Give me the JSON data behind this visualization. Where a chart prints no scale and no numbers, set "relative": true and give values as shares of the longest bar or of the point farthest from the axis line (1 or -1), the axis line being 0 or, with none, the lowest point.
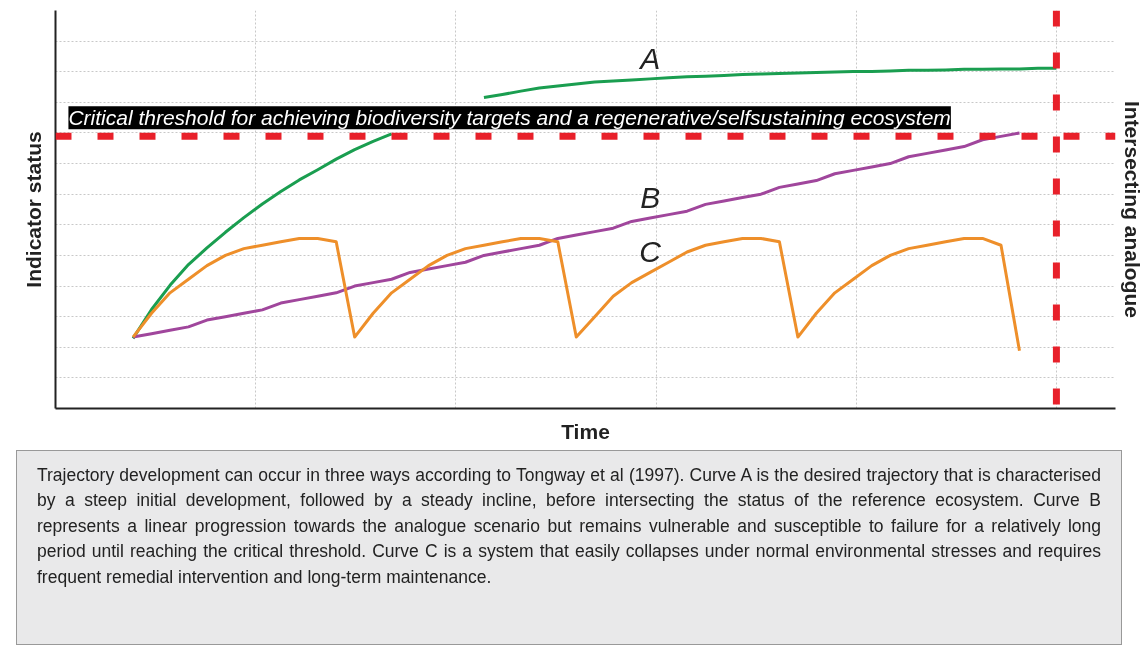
{
  "chart_data": {
    "type": "line",
    "relative": true,
    "xlabel": "Time",
    "ylabel": "Indicator status",
    "y2label": "Intersecting analogue",
    "categories": [
      null,
      null,
      null,
      null,
      null,
      null,
      null,
      null,
      null,
      null,
      null,
      null,
      null,
      null,
      null,
      null,
      null,
      null,
      null,
      null,
      null,
      null,
      null,
      null,
      null,
      null,
      null,
      null,
      null,
      null,
      null,
      null,
      null,
      null,
      null,
      null,
      null,
      null,
      null,
      null,
      null,
      null,
      null,
      null,
      null,
      null,
      null,
      null,
      null,
      null,
      null
    ],
    "series": [
      {
        "name": "A",
        "color": "#1a9e50",
        "values": [
          0.206,
          0.291,
          0.362,
          0.423,
          0.472,
          0.518,
          0.561,
          0.601,
          0.638,
          0.672,
          0.702,
          0.733,
          0.761,
          0.785,
          0.807,
          null,
          null,
          null,
          null,
          0.914,
          0.923,
          0.933,
          0.942,
          0.948,
          0.954,
          0.96,
          0.963,
          0.966,
          0.969,
          0.972,
          0.975,
          0.977,
          0.979,
          0.982,
          0.983,
          0.985,
          0.986,
          0.988,
          0.989,
          0.991,
          0.991,
          0.992,
          0.994,
          0.994,
          0.995,
          0.997,
          0.997,
          0.998,
          0.998,
          1.0,
          1.0
        ]
      },
      {
        "name": "B",
        "color": "#a0469c",
        "values": [
          0.21,
          0.22,
          0.23,
          0.24,
          0.26,
          0.27,
          0.28,
          0.29,
          0.31,
          0.32,
          0.33,
          0.34,
          0.36,
          0.37,
          0.38,
          0.4,
          0.41,
          0.42,
          0.43,
          0.45,
          0.46,
          0.47,
          0.48,
          0.5,
          0.51,
          0.52,
          0.53,
          0.55,
          0.56,
          0.57,
          0.58,
          0.6,
          0.61,
          0.62,
          0.63,
          0.65,
          0.66,
          0.67,
          0.69,
          0.7,
          0.71,
          0.72,
          0.74,
          0.75,
          0.76,
          0.77,
          0.79,
          0.8,
          0.81,
          null,
          null
        ]
      },
      {
        "name": "C",
        "color": "#ee8f2a",
        "values": [
          0.21,
          0.28,
          0.34,
          0.38,
          0.42,
          0.45,
          0.47,
          0.48,
          0.49,
          0.5,
          0.5,
          0.49,
          0.21,
          0.28,
          0.34,
          0.38,
          0.42,
          0.45,
          0.47,
          0.48,
          0.49,
          0.5,
          0.5,
          0.49,
          0.21,
          0.27,
          0.33,
          0.37,
          0.4,
          0.43,
          0.46,
          0.48,
          0.49,
          0.5,
          0.5,
          0.49,
          0.21,
          0.28,
          0.34,
          0.38,
          0.42,
          0.45,
          0.47,
          0.48,
          0.49,
          0.5,
          0.5,
          0.48,
          0.17,
          null,
          null
        ]
      }
    ],
    "ref_lines": [
      {
        "axis": "y",
        "value": 0.8,
        "label": "Critical threshold for achieving biodiversity targets and a regenerative/selfsustaining ecosystem",
        "color": "#e8202a",
        "line_style": "dashed"
      }
    ],
    "grid": true,
    "annotations": [
      "Trajectory development can occur in three ways according to Tongway et al (1997). Curve A is the desired trajectory that is characterised by a steep initial development, followed by a steady incline, before intersecting the status of the reference ecosystem.  Curve B represents a linear progression towards the analogue scenario but remains vulnerable and susceptible to failure for a relatively long period until reaching the critical threshold. Curve C is a system that easily collapses under normal environmental stresses and requires frequent remedial intervention and long-term maintenance."
    ]
  }
}
